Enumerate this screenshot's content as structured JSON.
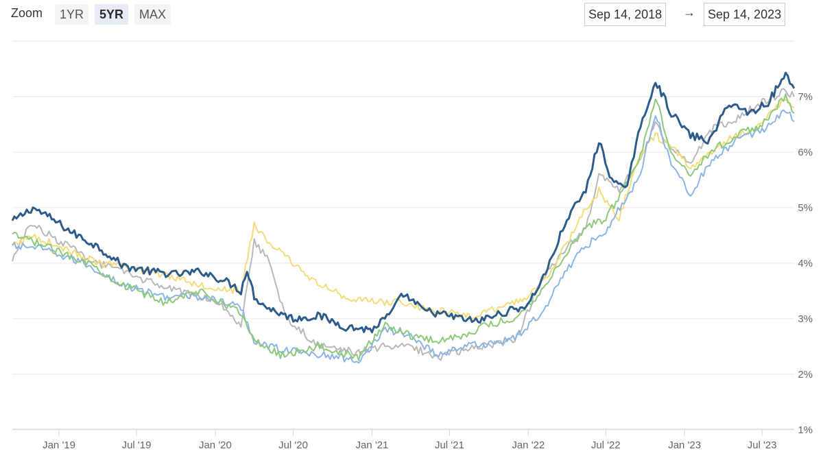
{
  "toolbar": {
    "zoom_label": "Zoom",
    "buttons": [
      "1YR",
      "5YR",
      "MAX"
    ],
    "active_button": "5YR",
    "range_from": "Sep 14, 2018",
    "range_arrow": "→",
    "range_to": "Sep 14, 2023"
  },
  "chart_data": {
    "type": "line",
    "x_range": [
      "2018-09-14",
      "2023-09-14"
    ],
    "ylim": [
      0.8,
      8.0
    ],
    "y_ticks": [
      "1%",
      "2%",
      "3%",
      "4%",
      "5%",
      "6%",
      "7%"
    ],
    "y_tick_values": [
      1,
      2,
      3,
      4,
      5,
      6,
      7
    ],
    "x_ticks": [
      "Jan '19",
      "Jul '19",
      "Jan '20",
      "Jul '20",
      "Jan '21",
      "Jul '21",
      "Jan '22",
      "Jul '22",
      "Jan '23",
      "Jul '23"
    ],
    "x_tick_dates": [
      "2019-01-01",
      "2019-07-01",
      "2020-01-01",
      "2020-07-01",
      "2021-01-01",
      "2021-07-01",
      "2022-01-01",
      "2022-07-01",
      "2023-01-01",
      "2023-07-01"
    ],
    "grid": true,
    "series": [
      {
        "color": "#2e5c8a",
        "x": [
          "2018-09-14",
          "2018-11-01",
          "2018-12-15",
          "2019-02-01",
          "2019-04-01",
          "2019-06-01",
          "2019-08-01",
          "2019-10-01",
          "2019-12-01",
          "2020-02-01",
          "2020-03-01",
          "2020-03-15",
          "2020-04-01",
          "2020-05-01",
          "2020-07-01",
          "2020-09-01",
          "2020-11-01",
          "2021-01-01",
          "2021-02-15",
          "2021-03-15",
          "2021-05-01",
          "2021-07-01",
          "2021-09-01",
          "2021-11-01",
          "2022-01-01",
          "2022-02-15",
          "2022-04-01",
          "2022-05-15",
          "2022-06-15",
          "2022-07-15",
          "2022-08-15",
          "2022-09-15",
          "2022-10-25",
          "2022-12-01",
          "2023-01-15",
          "2023-03-01",
          "2023-04-15",
          "2023-06-01",
          "2023-07-15",
          "2023-08-25",
          "2023-09-14"
        ],
        "y": [
          4.75,
          5.0,
          4.8,
          4.55,
          4.3,
          3.95,
          3.85,
          3.8,
          3.85,
          3.65,
          3.5,
          3.9,
          3.4,
          3.2,
          3.0,
          3.05,
          2.85,
          2.8,
          3.1,
          3.45,
          3.15,
          3.05,
          2.95,
          3.1,
          3.25,
          3.9,
          4.8,
          5.3,
          6.2,
          5.5,
          5.3,
          6.3,
          7.3,
          6.7,
          6.3,
          6.2,
          6.9,
          6.7,
          6.9,
          7.4,
          7.15
        ]
      },
      {
        "color": "#8ab4e6",
        "x": [
          "2018-09-14",
          "2018-11-01",
          "2019-01-01",
          "2019-03-01",
          "2019-06-01",
          "2019-09-01",
          "2019-12-01",
          "2020-03-01",
          "2020-04-01",
          "2020-06-01",
          "2020-09-01",
          "2020-12-01",
          "2021-02-01",
          "2021-04-01",
          "2021-06-01",
          "2021-08-01",
          "2021-10-01",
          "2021-12-01",
          "2022-02-01",
          "2022-04-01",
          "2022-05-15",
          "2022-07-01",
          "2022-09-15",
          "2022-10-25",
          "2022-12-01",
          "2023-01-15",
          "2023-03-01",
          "2023-05-01",
          "2023-07-01",
          "2023-08-25",
          "2023-09-14"
        ],
        "y": [
          4.3,
          4.3,
          4.15,
          4.0,
          3.6,
          3.4,
          3.4,
          3.2,
          2.6,
          2.45,
          2.35,
          2.25,
          2.8,
          2.7,
          2.35,
          2.5,
          2.55,
          2.65,
          3.1,
          3.9,
          4.3,
          4.6,
          5.5,
          6.7,
          5.8,
          5.25,
          5.8,
          6.2,
          6.4,
          6.75,
          6.55
        ]
      },
      {
        "color": "#8cc97a",
        "x": [
          "2018-09-14",
          "2018-11-01",
          "2019-01-01",
          "2019-03-01",
          "2019-06-01",
          "2019-09-01",
          "2019-12-01",
          "2020-03-01",
          "2020-04-01",
          "2020-06-01",
          "2020-09-01",
          "2020-12-01",
          "2021-02-01",
          "2021-04-01",
          "2021-06-01",
          "2021-08-01",
          "2021-10-01",
          "2021-12-01",
          "2022-02-01",
          "2022-04-01",
          "2022-05-15",
          "2022-07-01",
          "2022-09-15",
          "2022-10-25",
          "2022-12-01",
          "2023-01-15",
          "2023-03-01",
          "2023-05-01",
          "2023-07-01",
          "2023-08-25",
          "2023-09-14"
        ],
        "y": [
          4.5,
          4.4,
          4.2,
          4.05,
          3.6,
          3.3,
          3.5,
          3.1,
          2.6,
          2.35,
          2.5,
          2.3,
          2.9,
          2.7,
          2.6,
          2.7,
          2.9,
          3.0,
          3.5,
          4.2,
          4.65,
          4.8,
          5.8,
          7.0,
          6.0,
          5.6,
          6.0,
          6.3,
          6.5,
          7.0,
          6.7
        ]
      },
      {
        "color": "#f4dc7a",
        "x": [
          "2018-09-14",
          "2018-11-01",
          "2019-01-01",
          "2019-04-01",
          "2019-07-01",
          "2019-10-01",
          "2019-12-01",
          "2020-03-01",
          "2020-04-01",
          "2020-05-01",
          "2020-07-01",
          "2020-09-01",
          "2020-11-01",
          "2021-01-01",
          "2021-03-01",
          "2021-05-01",
          "2021-07-01",
          "2021-09-01",
          "2021-11-01",
          "2022-01-01",
          "2022-03-01",
          "2022-05-01",
          "2022-06-15",
          "2022-08-01",
          "2022-09-15",
          "2022-10-25",
          "2022-12-01",
          "2023-01-15",
          "2023-03-01",
          "2023-05-01",
          "2023-07-01",
          "2023-08-25",
          "2023-09-14"
        ],
        "y": [
          4.3,
          4.5,
          4.3,
          4.0,
          3.9,
          3.75,
          3.6,
          3.5,
          4.7,
          4.4,
          4.0,
          3.6,
          3.4,
          3.3,
          3.3,
          3.2,
          3.1,
          3.05,
          3.2,
          3.4,
          3.9,
          4.8,
          5.3,
          4.8,
          5.9,
          6.3,
          6.1,
          5.7,
          6.0,
          6.3,
          6.5,
          7.0,
          6.8
        ]
      },
      {
        "color": "#b9b9b9",
        "x": [
          "2018-09-14",
          "2018-10-01",
          "2018-11-01",
          "2019-01-01",
          "2019-04-01",
          "2019-07-01",
          "2019-10-01",
          "2020-01-01",
          "2020-03-01",
          "2020-04-01",
          "2020-05-01",
          "2020-06-15",
          "2020-09-01",
          "2020-12-01",
          "2021-02-01",
          "2021-04-01",
          "2021-06-01",
          "2021-09-01",
          "2021-12-01",
          "2022-02-01",
          "2022-04-01",
          "2022-05-15",
          "2022-06-15",
          "2022-08-01",
          "2022-09-15",
          "2022-10-25",
          "2022-12-01",
          "2023-01-15",
          "2023-03-01",
          "2023-05-01",
          "2023-07-01",
          "2023-08-25",
          "2023-09-14"
        ],
        "y": [
          4.0,
          4.4,
          4.7,
          4.4,
          4.0,
          3.75,
          3.5,
          3.35,
          2.9,
          4.4,
          4.1,
          3.0,
          2.5,
          2.4,
          2.5,
          2.5,
          2.3,
          2.5,
          2.6,
          3.7,
          4.3,
          4.6,
          5.6,
          5.3,
          5.8,
          6.5,
          6.1,
          5.8,
          6.4,
          6.6,
          6.9,
          7.1,
          7.0
        ]
      }
    ]
  }
}
